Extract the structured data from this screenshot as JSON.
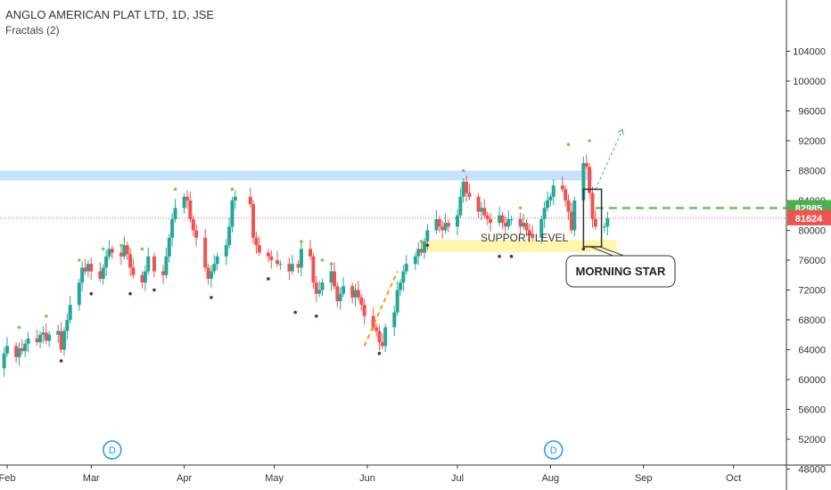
{
  "header": {
    "title": "ANGLO AMERICAN PLAT LTD, 1D, JSE",
    "indicator": "Fractals (2)"
  },
  "annotations": {
    "support_label": "SUPPORT LEVEL",
    "callout_label": "MORNING STAR",
    "event_marker": "D"
  },
  "colors": {
    "up": "#26a69a",
    "down": "#ef5350",
    "fractal_up": "#8bc34a",
    "fractal_down": "#8b1a1a",
    "resistance_zone": "#bbdefb",
    "support_zone": "#fff59d",
    "target_line": "#4caf50",
    "last_price_line": "#ef5350",
    "marker": "#2196f3"
  },
  "chart_data": {
    "type": "candlestick",
    "y_axis": {
      "range": [
        44000,
        108000
      ],
      "ticks": [
        104000,
        100000,
        96000,
        92000,
        88000,
        84000,
        80000,
        76000,
        72000,
        68000,
        64000,
        60000,
        56000,
        52000,
        48000
      ]
    },
    "x_axis": {
      "range": [
        "2019-02-01",
        "2019-10-10"
      ],
      "ticks": [
        {
          "date": "2019-02-01",
          "label": "Feb"
        },
        {
          "date": "2019-03-01",
          "label": "Mar"
        },
        {
          "date": "2019-04-01",
          "label": "Apr"
        },
        {
          "date": "2019-05-01",
          "label": "May"
        },
        {
          "date": "2019-06-01",
          "label": "Jun"
        },
        {
          "date": "2019-07-01",
          "label": "Jul"
        },
        {
          "date": "2019-08-01",
          "label": "Aug"
        },
        {
          "date": "2019-09-01",
          "label": "Sep"
        },
        {
          "date": "2019-10-01",
          "label": "Oct"
        }
      ]
    },
    "price_labels": [
      {
        "value": 82985,
        "label": "82985",
        "color": "#4caf50"
      },
      {
        "value": 81624,
        "label": "81624",
        "color": "#ef5350"
      }
    ],
    "zones": [
      {
        "name": "resistance",
        "from": "2019-01-28",
        "to": "2019-08-15",
        "y": [
          86700,
          88000
        ]
      },
      {
        "name": "support",
        "from": "2019-06-20",
        "to": "2019-08-23",
        "y": [
          77100,
          78700
        ]
      }
    ],
    "close_line": 81624,
    "target_line": 82985,
    "projection": {
      "from": [
        "2019-08-16",
        85500
      ],
      "to": [
        "2019-08-25",
        93500
      ]
    },
    "pattern_box": {
      "from": [
        "2019-08-12",
        77800
      ],
      "to": [
        "2019-08-18",
        85500
      ]
    },
    "events": [
      {
        "date": "2019-03-08"
      },
      {
        "date": "2019-08-02"
      }
    ],
    "closes": [
      [
        "2019-01-30",
        61500
      ],
      [
        "2019-01-31",
        63500
      ],
      [
        "2019-02-01",
        64500
      ],
      [
        "2019-02-04",
        63000
      ],
      [
        "2019-02-05",
        64200
      ],
      [
        "2019-02-06",
        63800
      ],
      [
        "2019-02-07",
        64800
      ],
      [
        "2019-02-08",
        65500
      ],
      [
        "2019-02-11",
        65000
      ],
      [
        "2019-02-12",
        66000
      ],
      [
        "2019-02-13",
        66300
      ],
      [
        "2019-02-14",
        65200
      ],
      [
        "2019-02-15",
        66000
      ],
      [
        "2019-02-18",
        66500
      ],
      [
        "2019-02-19",
        64000
      ],
      [
        "2019-02-20",
        66500
      ],
      [
        "2019-02-21",
        68000
      ],
      [
        "2019-02-22",
        70000
      ],
      [
        "2019-02-25",
        73000
      ],
      [
        "2019-02-26",
        75000
      ],
      [
        "2019-02-27",
        74500
      ],
      [
        "2019-02-28",
        75500
      ],
      [
        "2019-03-01",
        74500
      ],
      [
        "2019-03-04",
        73500
      ],
      [
        "2019-03-05",
        75000
      ],
      [
        "2019-03-06",
        76500
      ],
      [
        "2019-03-07",
        77500
      ],
      [
        "2019-03-08",
        77000
      ],
      [
        "2019-03-11",
        76500
      ],
      [
        "2019-03-12",
        78000
      ],
      [
        "2019-03-13",
        76800
      ],
      [
        "2019-03-14",
        75000
      ],
      [
        "2019-03-15",
        74000
      ],
      [
        "2019-03-18",
        73000
      ],
      [
        "2019-03-19",
        74500
      ],
      [
        "2019-03-20",
        76500
      ],
      [
        "2019-03-22",
        74500
      ],
      [
        "2019-03-25",
        74000
      ],
      [
        "2019-03-26",
        76500
      ],
      [
        "2019-03-27",
        79000
      ],
      [
        "2019-03-28",
        81500
      ],
      [
        "2019-03-29",
        83000
      ],
      [
        "2019-04-01",
        84500
      ],
      [
        "2019-04-02",
        84000
      ],
      [
        "2019-04-03",
        81500
      ],
      [
        "2019-04-04",
        80000
      ],
      [
        "2019-04-05",
        79000
      ],
      [
        "2019-04-08",
        75000
      ],
      [
        "2019-04-09",
        73500
      ],
      [
        "2019-04-10",
        74500
      ],
      [
        "2019-04-11",
        75500
      ],
      [
        "2019-04-12",
        76500
      ],
      [
        "2019-04-15",
        78000
      ],
      [
        "2019-04-16",
        80500
      ],
      [
        "2019-04-17",
        84000
      ],
      [
        "2019-04-18",
        84500
      ],
      [
        "2019-04-23",
        83500
      ],
      [
        "2019-04-24",
        79000
      ],
      [
        "2019-04-25",
        78000
      ],
      [
        "2019-04-26",
        77000
      ],
      [
        "2019-04-29",
        76500
      ],
      [
        "2019-04-30",
        76000
      ],
      [
        "2019-05-02",
        75500
      ],
      [
        "2019-05-03",
        75500
      ],
      [
        "2019-05-06",
        74500
      ],
      [
        "2019-05-07",
        75500
      ],
      [
        "2019-05-09",
        75000
      ],
      [
        "2019-05-10",
        77500
      ],
      [
        "2019-05-13",
        76500
      ],
      [
        "2019-05-14",
        73000
      ],
      [
        "2019-05-15",
        71500
      ],
      [
        "2019-05-16",
        72000
      ],
      [
        "2019-05-17",
        73000
      ],
      [
        "2019-05-20",
        74500
      ],
      [
        "2019-05-21",
        72500
      ],
      [
        "2019-05-22",
        70500
      ],
      [
        "2019-05-23",
        71500
      ],
      [
        "2019-05-24",
        72500
      ],
      [
        "2019-05-27",
        71000
      ],
      [
        "2019-05-28",
        72000
      ],
      [
        "2019-05-29",
        71000
      ],
      [
        "2019-05-30",
        70000
      ],
      [
        "2019-05-31",
        68500
      ],
      [
        "2019-06-03",
        67000
      ],
      [
        "2019-06-04",
        66500
      ],
      [
        "2019-06-05",
        65000
      ],
      [
        "2019-06-06",
        64500
      ],
      [
        "2019-06-07",
        67000
      ],
      [
        "2019-06-10",
        69000
      ],
      [
        "2019-06-11",
        72000
      ],
      [
        "2019-06-12",
        73000
      ],
      [
        "2019-06-13",
        74500
      ],
      [
        "2019-06-14",
        75500
      ],
      [
        "2019-06-17",
        76500
      ],
      [
        "2019-06-18",
        77500
      ],
      [
        "2019-06-19",
        77000
      ],
      [
        "2019-06-20",
        78500
      ],
      [
        "2019-06-21",
        80000
      ],
      [
        "2019-06-24",
        81500
      ],
      [
        "2019-06-25",
        80500
      ],
      [
        "2019-06-26",
        80000
      ],
      [
        "2019-06-27",
        81000
      ],
      [
        "2019-06-28",
        80500
      ],
      [
        "2019-07-01",
        82000
      ],
      [
        "2019-07-02",
        84500
      ],
      [
        "2019-07-03",
        86500
      ],
      [
        "2019-07-04",
        85000
      ],
      [
        "2019-07-05",
        84500
      ],
      [
        "2019-07-08",
        82500
      ],
      [
        "2019-07-09",
        83000
      ],
      [
        "2019-07-10",
        82000
      ],
      [
        "2019-07-11",
        81500
      ],
      [
        "2019-07-12",
        81000
      ],
      [
        "2019-07-15",
        82000
      ],
      [
        "2019-07-16",
        81000
      ],
      [
        "2019-07-17",
        80500
      ],
      [
        "2019-07-18",
        81500
      ],
      [
        "2019-07-19",
        81500
      ],
      [
        "2019-07-22",
        80500
      ],
      [
        "2019-07-23",
        81000
      ],
      [
        "2019-07-24",
        80000
      ],
      [
        "2019-07-25",
        79500
      ],
      [
        "2019-07-26",
        79000
      ],
      [
        "2019-07-29",
        81500
      ],
      [
        "2019-07-30",
        83000
      ],
      [
        "2019-07-31",
        84000
      ],
      [
        "2019-08-01",
        84500
      ],
      [
        "2019-08-02",
        86000
      ],
      [
        "2019-08-05",
        85500
      ],
      [
        "2019-08-06",
        84000
      ],
      [
        "2019-08-07",
        82500
      ],
      [
        "2019-08-08",
        80000
      ],
      [
        "2019-08-09",
        84000
      ],
      [
        "2019-08-12",
        89000
      ],
      [
        "2019-08-13",
        88500
      ],
      [
        "2019-08-14",
        85000
      ],
      [
        "2019-08-15",
        81500
      ],
      [
        "2019-08-16",
        80500
      ],
      [
        "2019-08-19",
        80500
      ],
      [
        "2019-08-20",
        81624
      ]
    ],
    "fractals_up": [
      [
        "2019-02-05",
        67000
      ],
      [
        "2019-02-14",
        68500
      ],
      [
        "2019-02-25",
        76000
      ],
      [
        "2019-03-05",
        77500
      ],
      [
        "2019-03-11",
        78000
      ],
      [
        "2019-03-18",
        77500
      ],
      [
        "2019-03-29",
        85500
      ],
      [
        "2019-04-17",
        85500
      ],
      [
        "2019-05-10",
        78500
      ],
      [
        "2019-05-17",
        76000
      ],
      [
        "2019-05-20",
        75500
      ],
      [
        "2019-06-19",
        78500
      ],
      [
        "2019-07-03",
        88000
      ],
      [
        "2019-07-22",
        83000
      ],
      [
        "2019-08-07",
        91500
      ],
      [
        "2019-08-14",
        92000
      ]
    ],
    "fractals_down": [
      [
        "2019-02-19",
        62500
      ],
      [
        "2019-03-01",
        71500
      ],
      [
        "2019-03-14",
        71500
      ],
      [
        "2019-03-22",
        72000
      ],
      [
        "2019-04-10",
        71000
      ],
      [
        "2019-04-29",
        73500
      ],
      [
        "2019-05-08",
        69000
      ],
      [
        "2019-05-15",
        68500
      ],
      [
        "2019-06-05",
        63500
      ],
      [
        "2019-06-21",
        78000
      ],
      [
        "2019-07-15",
        76500
      ],
      [
        "2019-07-19",
        76500
      ],
      [
        "2019-08-12",
        77500
      ]
    ]
  }
}
